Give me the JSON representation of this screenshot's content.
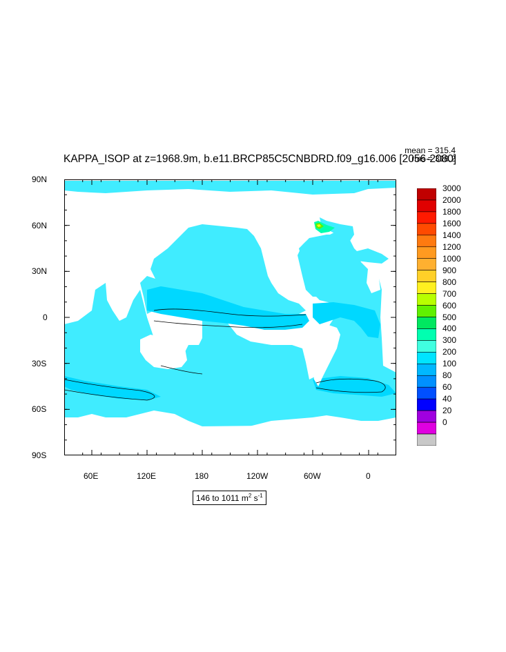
{
  "title": "KAPPA_ISOP at z=1968.9m, b.e11.BRCP85C5CNBDRD.f09_g16.006 [2056-2080]",
  "stats": {
    "mean": "mean = 315.4",
    "rms": "rms = 318.2"
  },
  "axes": {
    "y_ticks": [
      "90N",
      "60N",
      "30N",
      "0",
      "30S",
      "60S",
      "90S"
    ],
    "x_ticks": [
      "60E",
      "120E",
      "180",
      "120W",
      "60W",
      "0"
    ]
  },
  "colorbar": {
    "levels": [
      "3000",
      "2000",
      "1800",
      "1600",
      "1400",
      "1200",
      "1000",
      "900",
      "800",
      "700",
      "600",
      "500",
      "400",
      "300",
      "200",
      "100",
      "80",
      "60",
      "40",
      "20",
      "0"
    ],
    "colors": [
      "#c00000",
      "#e00000",
      "#ff1a00",
      "#ff4a00",
      "#ff7a10",
      "#ff9a20",
      "#ffb030",
      "#ffd028",
      "#fff020",
      "#b8ff00",
      "#60f000",
      "#00e860",
      "#00ffb0",
      "#40ffe0",
      "#00e4ff",
      "#00b8ff",
      "#0090ff",
      "#0050ff",
      "#0000ff",
      "#a000e0",
      "#e000e0",
      "#c8c8c8"
    ]
  },
  "range_label": {
    "prefix": "146 to 1011 m",
    "sup1": "2",
    "middle": " s",
    "sup2": "-1"
  },
  "colors": {
    "ocean": "#40ecff",
    "ocean_high": "#00d8ff",
    "land": "#ffffff",
    "contour": "#000000"
  }
}
